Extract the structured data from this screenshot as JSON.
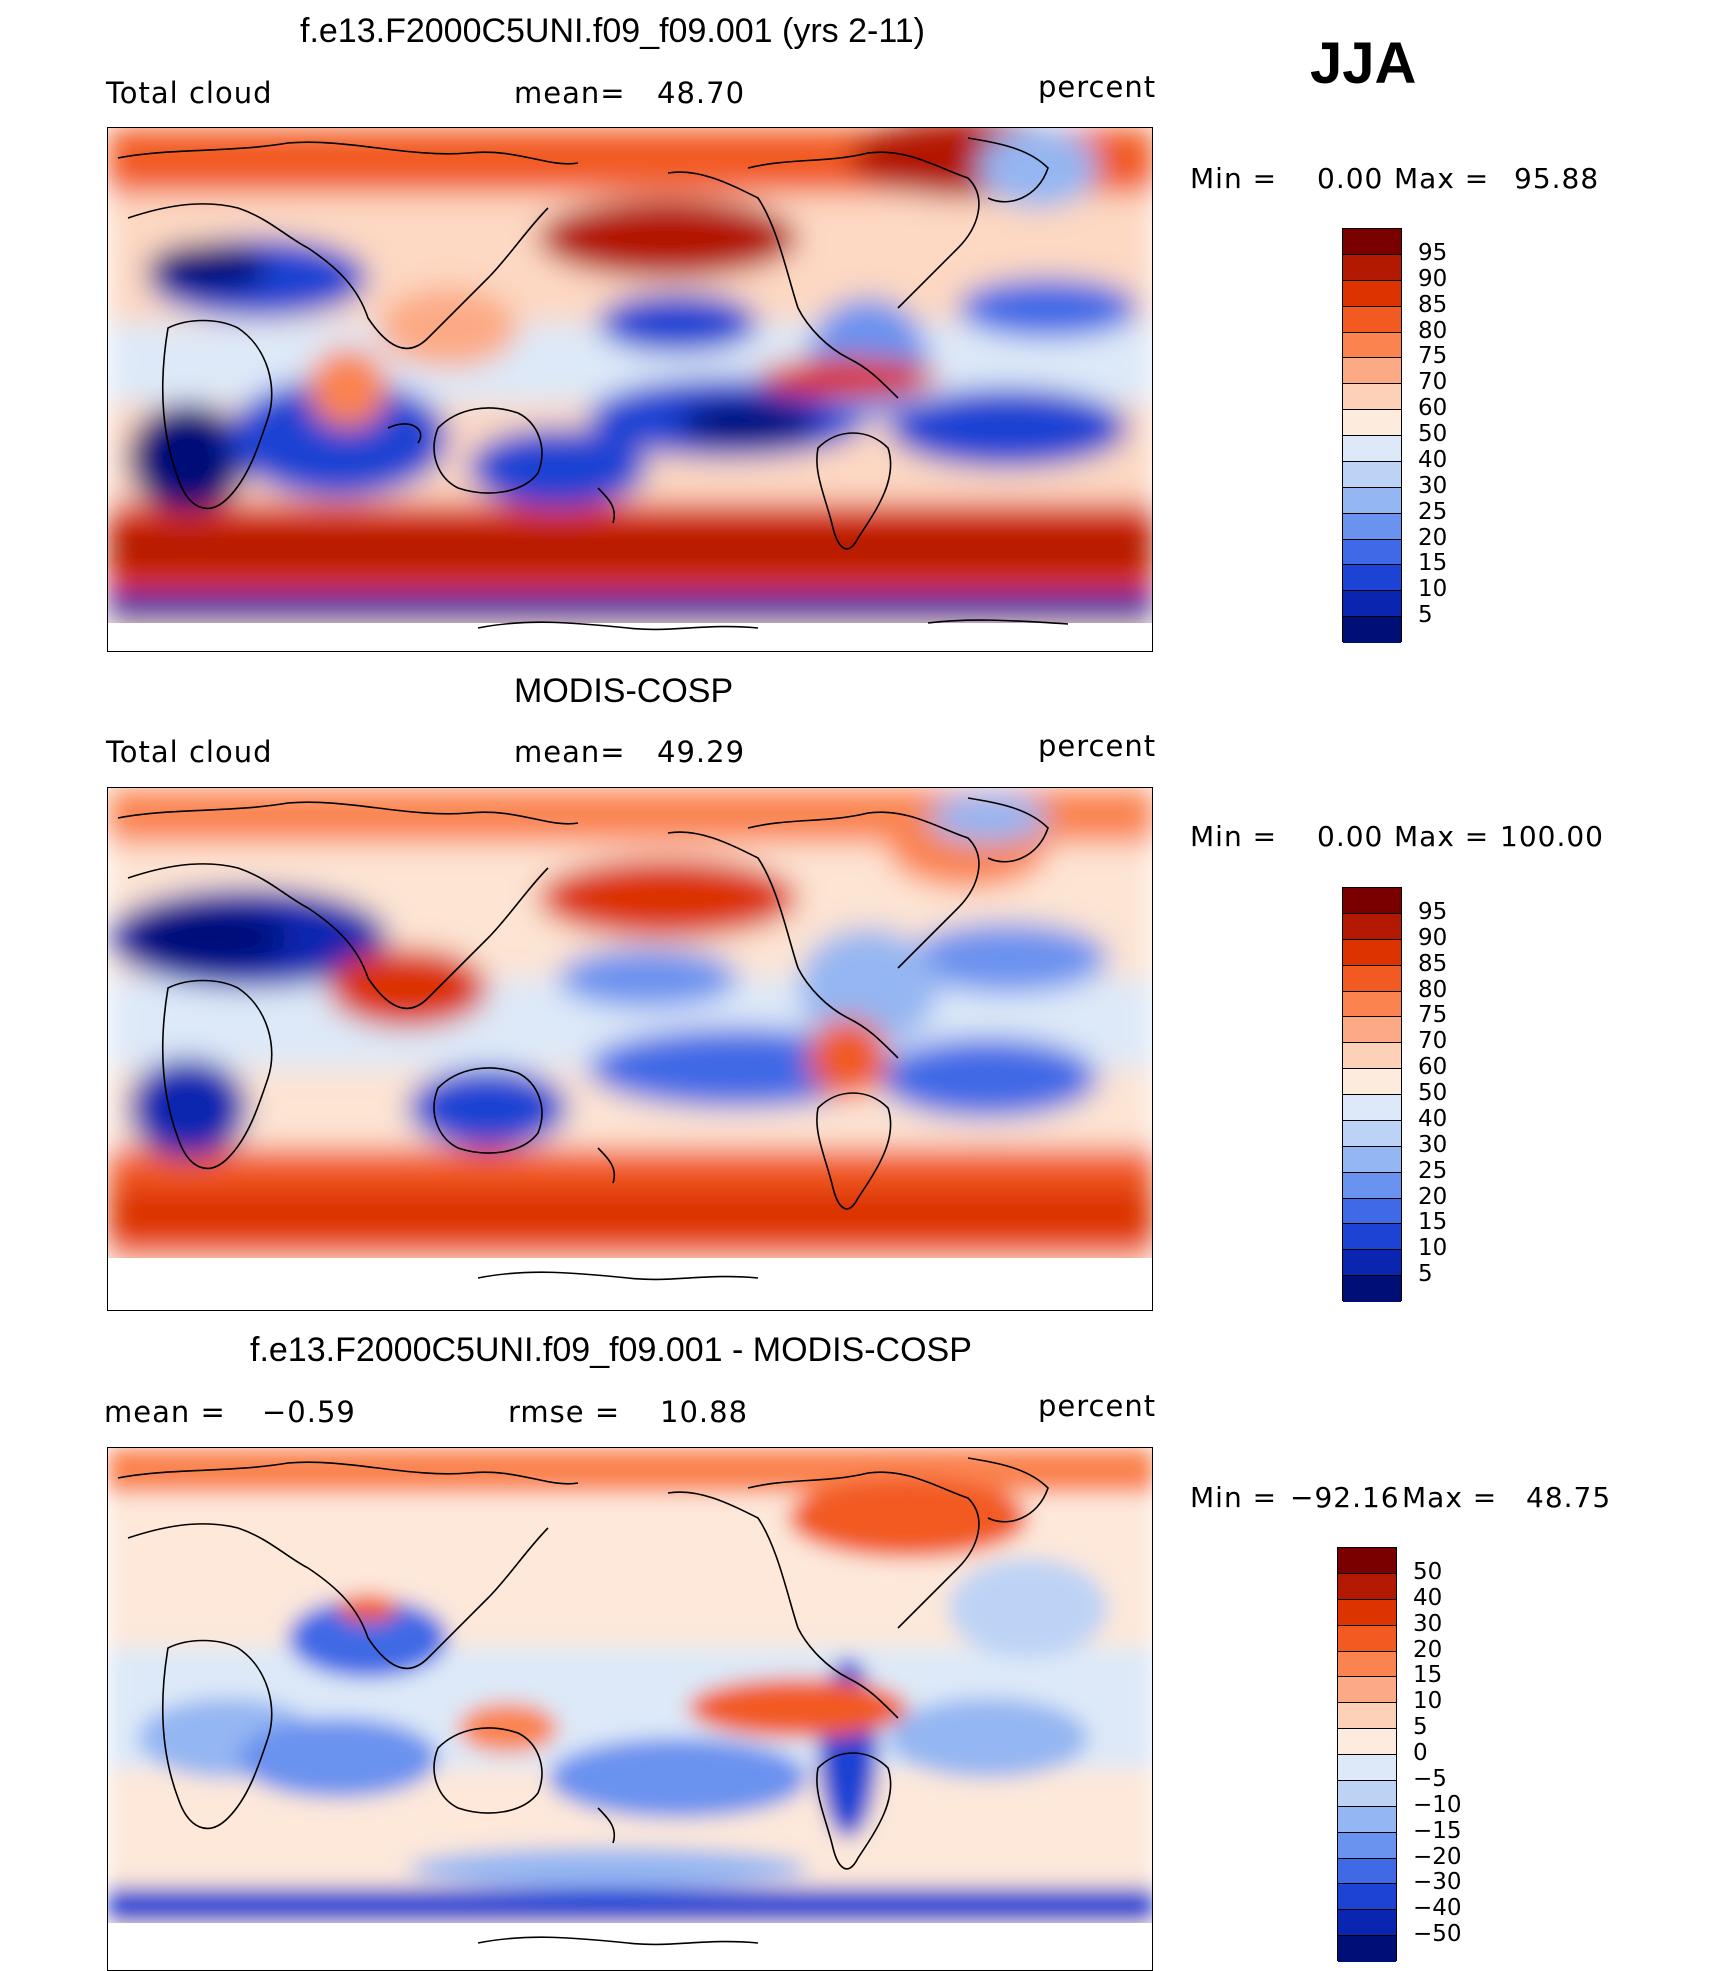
{
  "season": "JJA",
  "chart_data": [
    {
      "type": "heatmap",
      "title": "f.e13.F2000C5UNI.f09_f09.001 (yrs 2-11)",
      "variable": "Total cloud",
      "mean_label": "mean=",
      "mean_value": "48.70",
      "units": "percent",
      "min_label": "Min =",
      "min_value": "0.00",
      "max_label": "Max =",
      "max_value": "95.88",
      "colorbar_levels": [
        "95",
        "90",
        "85",
        "80",
        "75",
        "70",
        "60",
        "50",
        "40",
        "30",
        "25",
        "20",
        "15",
        "10",
        "5"
      ],
      "colorbar_colors": [
        "#7a0000",
        "#b31800",
        "#dc3300",
        "#f25a22",
        "#fa8350",
        "#fcaa85",
        "#fdd0b8",
        "#fdecdd",
        "#dde9f8",
        "#bdd3f5",
        "#94b6f2",
        "#6a92ef",
        "#3f69e6",
        "#1c43d3",
        "#0a25b0",
        "#000e78"
      ]
    },
    {
      "type": "heatmap",
      "title": "MODIS-COSP",
      "variable": "Total cloud",
      "mean_label": "mean=",
      "mean_value": "49.29",
      "units": "percent",
      "min_label": "Min =",
      "min_value": "0.00",
      "max_label": "Max =",
      "max_value": "100.00",
      "colorbar_levels": [
        "95",
        "90",
        "85",
        "80",
        "75",
        "70",
        "60",
        "50",
        "40",
        "30",
        "25",
        "20",
        "15",
        "10",
        "5"
      ],
      "colorbar_colors": [
        "#7a0000",
        "#b31800",
        "#dc3300",
        "#f25a22",
        "#fa8350",
        "#fcaa85",
        "#fdd0b8",
        "#fdecdd",
        "#dde9f8",
        "#bdd3f5",
        "#94b6f2",
        "#6a92ef",
        "#3f69e6",
        "#1c43d3",
        "#0a25b0",
        "#000e78"
      ]
    },
    {
      "type": "heatmap",
      "title": "f.e13.F2000C5UNI.f09_f09.001 - MODIS-COSP",
      "mean_label": "mean =",
      "mean_value": "−0.59",
      "rmse_label": "rmse =",
      "rmse_value": "10.88",
      "units": "percent",
      "min_label": "Min =",
      "min_value": "−92.16",
      "max_label": "Max =",
      "max_value": "48.75",
      "colorbar_levels": [
        "50",
        "40",
        "30",
        "20",
        "15",
        "10",
        "5",
        "0",
        "−5",
        "−10",
        "−15",
        "−20",
        "−30",
        "−40",
        "−50"
      ],
      "colorbar_colors": [
        "#7a0000",
        "#b31800",
        "#dc3300",
        "#f25a22",
        "#fa8350",
        "#fcaa85",
        "#fdd0b8",
        "#fdecdd",
        "#dde9f8",
        "#bdd3f5",
        "#94b6f2",
        "#6a92ef",
        "#3f69e6",
        "#1c43d3",
        "#0a25b0",
        "#000e78"
      ]
    }
  ]
}
